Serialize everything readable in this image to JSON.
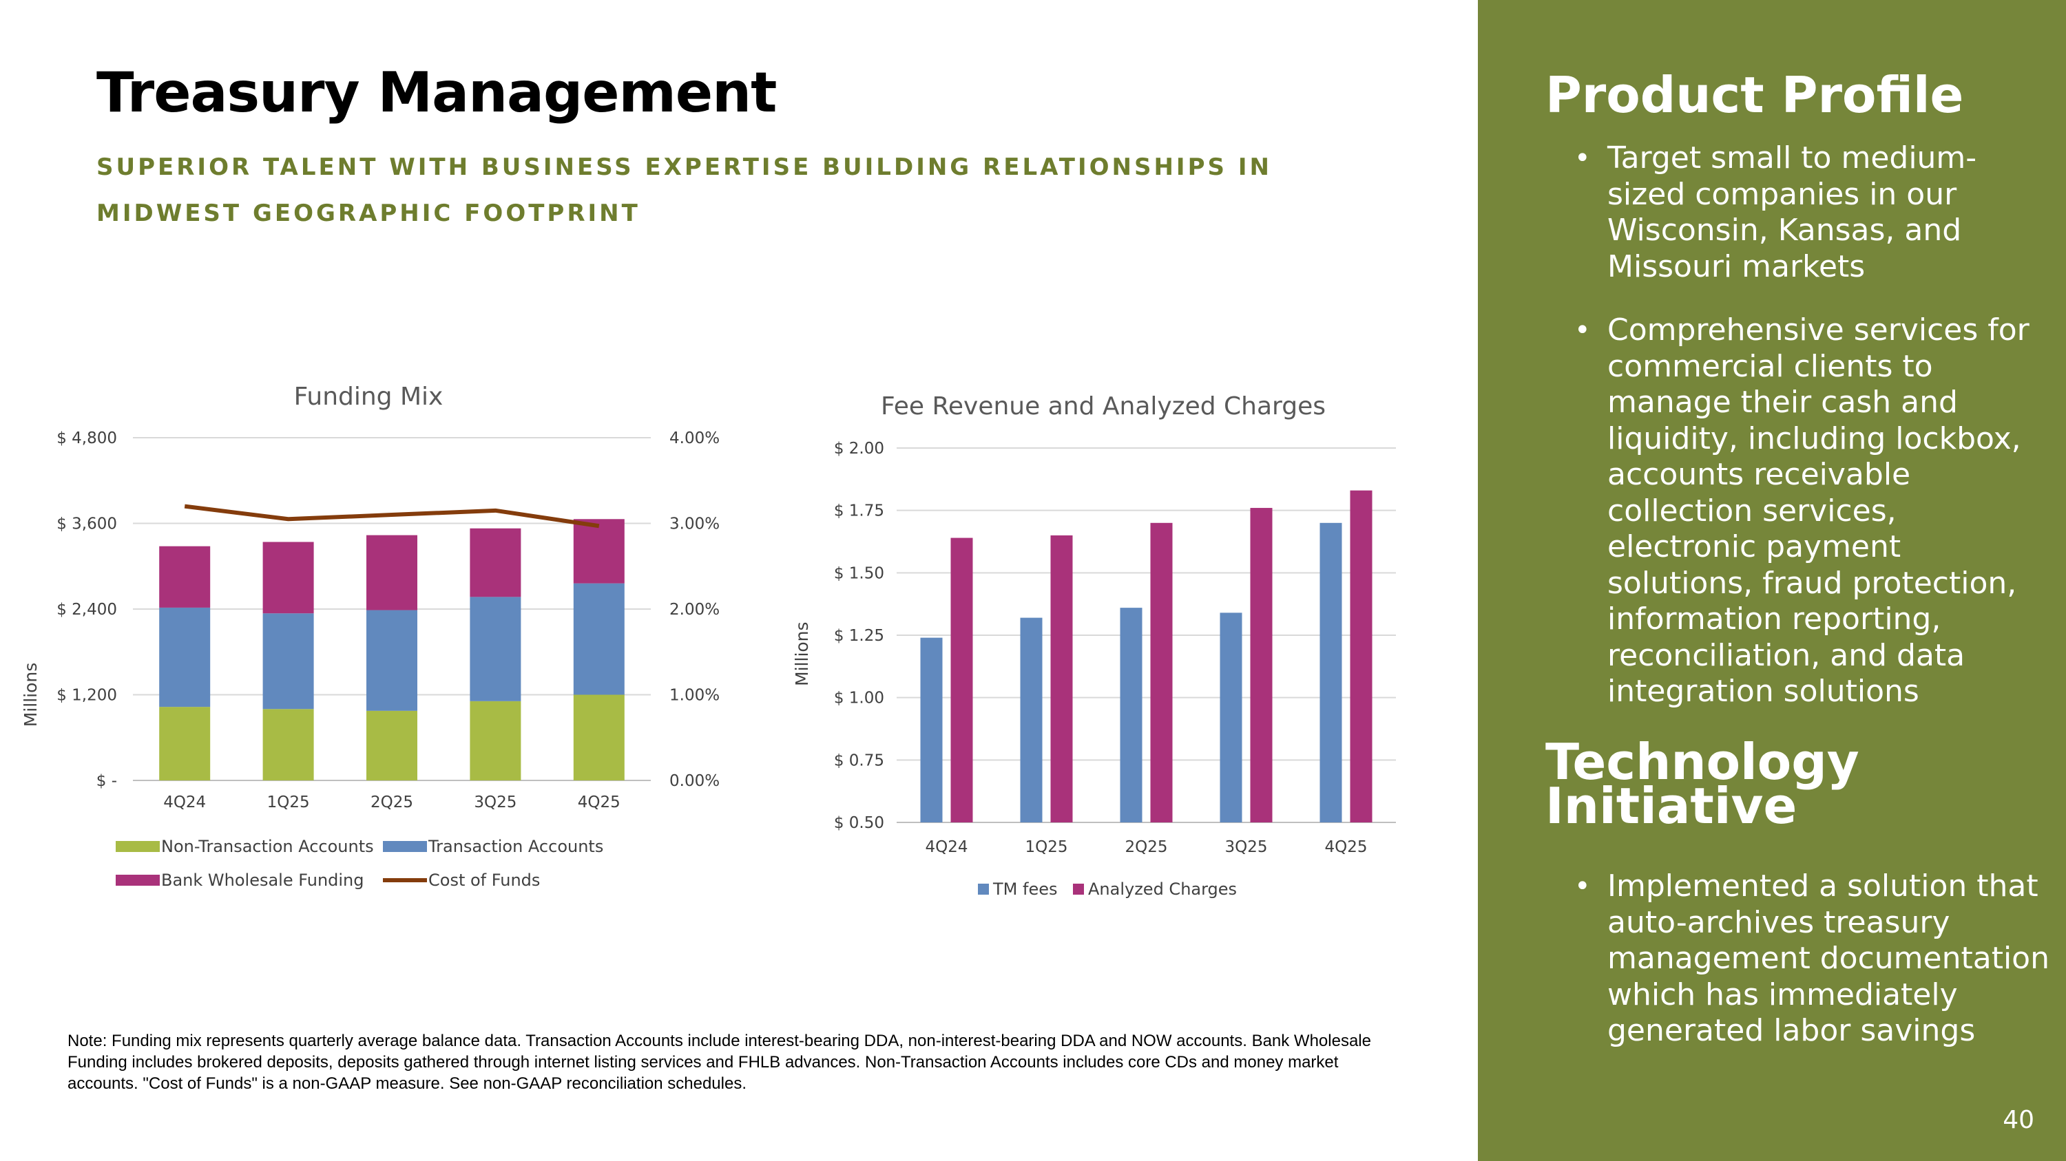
{
  "slide": {
    "title": "Treasury Management",
    "subtitle": "SUPERIOR TALENT WITH BUSINESS EXPERTISE BUILDING RELATIONSHIPS IN MIDWEST GEOGRAPHIC FOOTPRINT",
    "note": "Note: Funding mix represents quarterly average balance data. Transaction Accounts include interest-bearing DDA, non-interest-bearing DDA and NOW accounts. Bank Wholesale Funding includes brokered deposits, deposits gathered through internet listing services and FHLB advances. Non-Transaction Accounts includes core CDs and money market accounts. \"Cost of Funds\" is a non-GAAP measure. See non-GAAP reconciliation schedules.",
    "page_number": "40",
    "accent_color": "#76863a",
    "subtitle_color": "#6e7d2e"
  },
  "sidebar": {
    "product_heading": "Product Profile",
    "product_bullets": [
      "Target small to medium-sized companies in our Wisconsin, Kansas, and Missouri markets",
      "Comprehensive services for commercial clients to manage their cash and liquidity, including lockbox, accounts receivable collection services, electronic payment solutions, fraud protection, information reporting, reconciliation, and data integration solutions"
    ],
    "tech_heading": "Technology Initiative",
    "tech_bullets": [
      "Implemented a solution that auto-archives treasury management documentation which has immediately generated labor savings"
    ]
  },
  "chart_data": [
    {
      "type": "bar",
      "stacked": true,
      "title": "Funding Mix",
      "ylabel": "Millions",
      "categories": [
        "4Q24",
        "1Q25",
        "2Q25",
        "3Q25",
        "4Q25"
      ],
      "ylim": [
        0,
        4800
      ],
      "yticks": [
        0,
        1200,
        2400,
        3600,
        4800
      ],
      "ytick_labels": [
        "$ -",
        "$ 1,200",
        "$ 2,400",
        "$ 3,600",
        "$ 4,800"
      ],
      "y2lim": [
        0,
        4
      ],
      "y2ticks": [
        0,
        1,
        2,
        3,
        4
      ],
      "y2tick_labels": [
        "0.00%",
        "1.00%",
        "2.00%",
        "3.00%",
        "4.00%"
      ],
      "series": [
        {
          "name": "Non-Transaction Accounts",
          "color": "#a8bb45",
          "values": [
            1030,
            1000,
            975,
            1110,
            1200
          ]
        },
        {
          "name": "Transaction Accounts",
          "color": "#6189be",
          "values": [
            1390,
            1340,
            1410,
            1460,
            1560
          ]
        },
        {
          "name": "Bank Wholesale Funding",
          "color": "#a9327a",
          "values": [
            860,
            1000,
            1050,
            960,
            900
          ]
        },
        {
          "name": "Cost of Funds",
          "type": "line",
          "axis": "secondary",
          "color": "#843c0c",
          "values": [
            3.2,
            3.05,
            3.1,
            3.15,
            2.97
          ]
        }
      ],
      "legend": "bottom",
      "grid": true
    },
    {
      "type": "bar",
      "title": "Fee Revenue and Analyzed Charges",
      "ylabel": "Millions",
      "categories": [
        "4Q24",
        "1Q25",
        "2Q25",
        "3Q25",
        "4Q25"
      ],
      "ylim": [
        0.5,
        2.0
      ],
      "yticks": [
        0.5,
        0.75,
        1.0,
        1.25,
        1.5,
        1.75,
        2.0
      ],
      "ytick_labels": [
        "$ 0.50",
        "$ 0.75",
        "$ 1.00",
        "$ 1.25",
        "$ 1.50",
        "$ 1.75",
        "$ 2.00"
      ],
      "series": [
        {
          "name": "TM fees",
          "color": "#6189be",
          "values": [
            1.24,
            1.32,
            1.36,
            1.34,
            1.7
          ]
        },
        {
          "name": "Analyzed Charges",
          "color": "#a9327a",
          "values": [
            1.64,
            1.65,
            1.7,
            1.76,
            1.83
          ]
        }
      ],
      "legend": "bottom",
      "grid": true
    }
  ]
}
